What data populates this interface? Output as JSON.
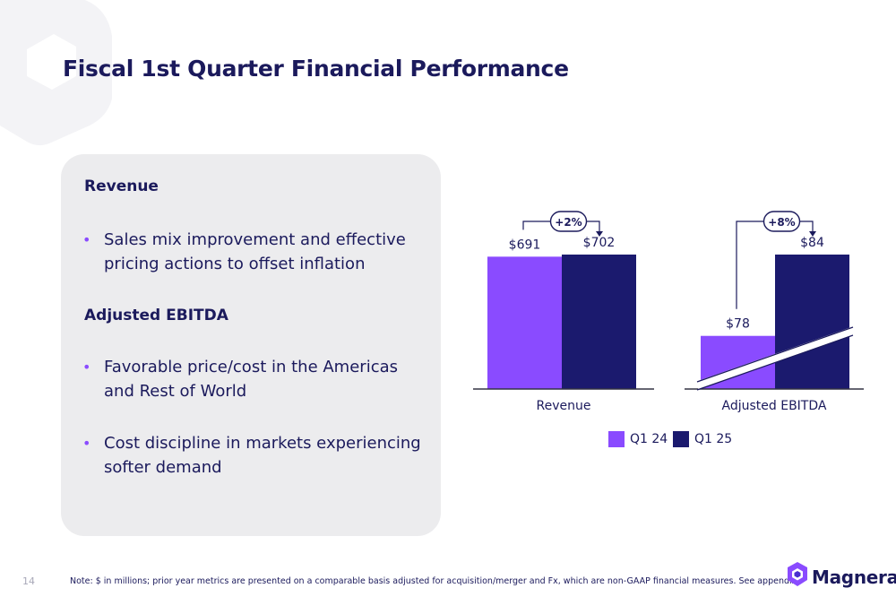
{
  "slide": {
    "title": "Fiscal 1st Quarter Financial Performance",
    "page_number": "14",
    "footnote": "Note: $ in millions; prior year metrics are presented on a comparable basis adjusted for acquisition/merger and Fx, which are non-GAAP financial measures.  See appendix.",
    "logo_text": "Magnera"
  },
  "panel": {
    "revenue_heading": "Revenue",
    "revenue_bullets": [
      "Sales mix improvement and effective pricing actions to offset inflation"
    ],
    "ebitda_heading": "Adjusted EBITDA",
    "ebitda_bullets": [
      "Favorable price/cost in the Americas and Rest of World",
      "Cost discipline in markets experiencing softer demand"
    ]
  },
  "colors": {
    "q1_24": "#8a4bff",
    "q1_25": "#1b1a6e",
    "title": "#1b1a5c"
  },
  "chart_data": {
    "type": "bar",
    "series": [
      {
        "name": "Q1 24",
        "values": [
          691,
          78
        ],
        "labels": [
          "$691",
          "$78"
        ]
      },
      {
        "name": "Q1 25",
        "values": [
          702,
          84
        ],
        "labels": [
          "$702",
          "$84"
        ]
      }
    ],
    "groups": [
      {
        "category": "Revenue",
        "change": "+2%",
        "axis_break": false
      },
      {
        "category": "Adjusted EBITDA",
        "change": "+8%",
        "axis_break": true
      }
    ],
    "legend_position": "bottom"
  }
}
